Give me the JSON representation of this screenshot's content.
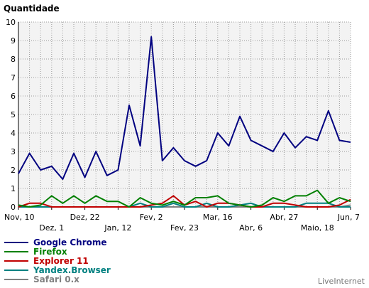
{
  "chart_data": {
    "type": "line",
    "title": "",
    "ylabel": "Quantidade",
    "xlabel": "",
    "ylim": [
      0,
      10
    ],
    "yticks": [
      0,
      1,
      2,
      3,
      4,
      5,
      6,
      7,
      8,
      9,
      10
    ],
    "grid": true,
    "legend_position": "bottom-left",
    "credit": "LiveInternet",
    "x_tick_labels": [
      {
        "label": "Nov, 10",
        "index": 0,
        "row": 1
      },
      {
        "label": "Dez, 1",
        "index": 3,
        "row": 2
      },
      {
        "label": "Dez, 22",
        "index": 6,
        "row": 1
      },
      {
        "label": "Jan, 12",
        "index": 9,
        "row": 2
      },
      {
        "label": "Fev, 2",
        "index": 12,
        "row": 1
      },
      {
        "label": "Fev, 23",
        "index": 15,
        "row": 2
      },
      {
        "label": "Mar, 16",
        "index": 18,
        "row": 1
      },
      {
        "label": "Abr, 6",
        "index": 21,
        "row": 2
      },
      {
        "label": "Abr, 27",
        "index": 24,
        "row": 1
      },
      {
        "label": "Maio, 18",
        "index": 27,
        "row": 2
      },
      {
        "label": "Jun, 7",
        "index": 30,
        "row": 1
      }
    ],
    "series": [
      {
        "name": "Google Chrome",
        "color": "#000080",
        "values": [
          1.8,
          2.9,
          2.0,
          2.2,
          1.5,
          2.9,
          1.6,
          3.0,
          1.7,
          2.0,
          5.5,
          3.3,
          9.2,
          2.5,
          3.2,
          2.5,
          2.2,
          2.5,
          4.0,
          3.3,
          4.9,
          3.6,
          3.3,
          3.0,
          4.0,
          3.2,
          3.8,
          3.6,
          5.2,
          3.6,
          3.5
        ]
      },
      {
        "name": "Firefox",
        "color": "#008000",
        "values": [
          0.1,
          0.0,
          0.1,
          0.6,
          0.2,
          0.6,
          0.2,
          0.6,
          0.3,
          0.3,
          0.0,
          0.5,
          0.2,
          0.1,
          0.3,
          0.1,
          0.5,
          0.5,
          0.6,
          0.2,
          0.1,
          0.0,
          0.1,
          0.5,
          0.3,
          0.6,
          0.6,
          0.9,
          0.2,
          0.5,
          0.3
        ]
      },
      {
        "name": "Explorer 11",
        "color": "#c00000",
        "values": [
          0.0,
          0.2,
          0.2,
          0.0,
          0.0,
          0.0,
          0.0,
          0.0,
          0.0,
          0.0,
          0.0,
          0.0,
          0.1,
          0.2,
          0.6,
          0.1,
          0.3,
          0.0,
          0.2,
          0.2,
          0.1,
          0.0,
          0.0,
          0.2,
          0.2,
          0.1,
          0.0,
          0.0,
          0.0,
          0.1,
          0.4
        ]
      },
      {
        "name": "Yandex.Browser",
        "color": "#008080",
        "values": [
          0.0,
          0.0,
          0.0,
          0.0,
          0.0,
          0.0,
          0.0,
          0.0,
          0.0,
          0.0,
          0.0,
          0.2,
          0.0,
          0.0,
          0.2,
          0.0,
          0.0,
          0.2,
          0.0,
          0.0,
          0.1,
          0.2,
          0.0,
          0.0,
          0.0,
          0.0,
          0.2,
          0.2,
          0.2,
          0.0,
          0.0
        ]
      },
      {
        "name": "Safari 0.x",
        "color": "#808080",
        "values": [
          0.0,
          0.0,
          0.0,
          0.0,
          0.0,
          0.0,
          0.0,
          0.0,
          0.0,
          0.0,
          0.0,
          0.0,
          0.0,
          0.0,
          0.0,
          0.0,
          0.0,
          0.0,
          0.0,
          0.0,
          0.0,
          0.0,
          0.0,
          0.0,
          0.0,
          0.0,
          0.0,
          0.0,
          0.0,
          0.0,
          0.1
        ]
      }
    ]
  }
}
